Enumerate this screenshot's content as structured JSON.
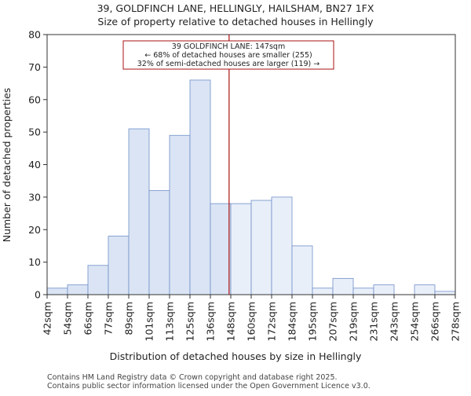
{
  "chart_data": {
    "type": "bar",
    "title": "39, GOLDFINCH LANE, HELLINGLY, HAILSHAM, BN27 1FX",
    "subtitle": "Size of property relative to detached houses in Hellingly",
    "xlabel": "Distribution of detached houses by size in Hellingly",
    "ylabel": "Number of detached properties",
    "bin_edges": [
      42,
      54,
      66,
      77,
      89,
      101,
      113,
      125,
      136,
      148,
      160,
      172,
      184,
      195,
      207,
      219,
      231,
      243,
      254,
      266,
      278
    ],
    "tick_labels": [
      "42sqm",
      "54sqm",
      "66sqm",
      "77sqm",
      "89sqm",
      "101sqm",
      "113sqm",
      "125sqm",
      "136sqm",
      "148sqm",
      "160sqm",
      "172sqm",
      "184sqm",
      "195sqm",
      "207sqm",
      "219sqm",
      "231sqm",
      "243sqm",
      "254sqm",
      "266sqm",
      "278sqm"
    ],
    "values": [
      2,
      3,
      9,
      18,
      51,
      32,
      49,
      66,
      28,
      28,
      29,
      30,
      15,
      2,
      5,
      2,
      3,
      0,
      3,
      1
    ],
    "ylim": [
      0,
      80
    ],
    "yticks": [
      0,
      10,
      20,
      30,
      40,
      50,
      60,
      70,
      80
    ],
    "highlight_value": 147,
    "annotation": [
      "39 GOLDFINCH LANE: 147sqm",
      "← 68% of detached houses are smaller (255)",
      "32% of semi-detached houses are larger (119) →"
    ],
    "colors": {
      "bar_left": "#dae4f4",
      "bar_right": "#e9eff9",
      "bar_edge": "#6f8fc9",
      "marker": "#aa1111"
    }
  },
  "footer": {
    "line1": "Contains HM Land Registry data © Crown copyright and database right 2025.",
    "line2": "Contains public sector information licensed under the Open Government Licence v3.0."
  }
}
